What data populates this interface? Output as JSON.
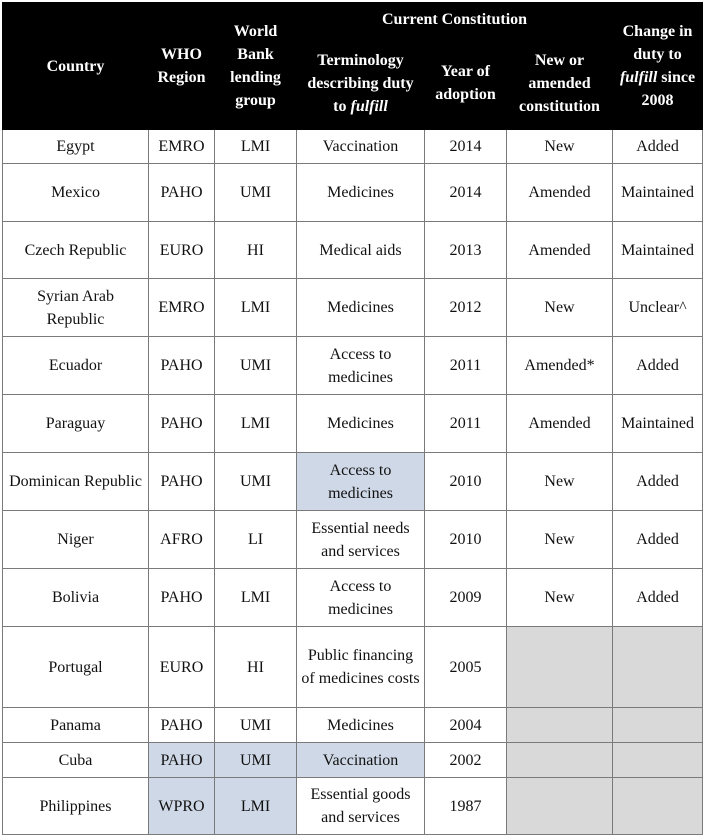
{
  "headers": {
    "country": "Country",
    "who_region": "WHO Region",
    "wb_lending": "World Bank lending group",
    "current_constitution": "Current Constitution",
    "terminology_pre": "Terminology describing duty to ",
    "terminology_em": "fulfill",
    "year": "Year of adoption",
    "new_amended": "New or amended constitution",
    "change_line1": "Change in duty to",
    "change_em": "fulfill",
    "change_line2": "since 2008"
  },
  "rows": [
    {
      "country": "Egypt",
      "who": "EMRO",
      "wb": "LMI",
      "term": "Vaccination",
      "year": "2014",
      "new": "New",
      "change": "Added"
    },
    {
      "country": "Mexico",
      "who": "PAHO",
      "wb": "UMI",
      "term": "Medicines",
      "year": "2014",
      "new": "Amended",
      "change": "Maintained"
    },
    {
      "country": "Czech Republic",
      "who": "EURO",
      "wb": "HI",
      "term": "Medical aids",
      "year": "2013",
      "new": "Amended",
      "change": "Maintained"
    },
    {
      "country": "Syrian Arab Republic",
      "who": "EMRO",
      "wb": "LMI",
      "term": "Medicines",
      "year": "2012",
      "new": "New",
      "change": "Unclear^"
    },
    {
      "country": "Ecuador",
      "who": "PAHO",
      "wb": "UMI",
      "term": "Access to medicines",
      "year": "2011",
      "new": "Amended*",
      "change": "Added"
    },
    {
      "country": "Paraguay",
      "who": "PAHO",
      "wb": "LMI",
      "term": "Medicines",
      "year": "2011",
      "new": "Amended",
      "change": "Maintained"
    },
    {
      "country": "Dominican Republic",
      "who": "PAHO",
      "wb": "UMI",
      "term": "Access to medicines",
      "year": "2010",
      "new": "New",
      "change": "Added"
    },
    {
      "country": "Niger",
      "who": "AFRO",
      "wb": "LI",
      "term": "Essential needs and services",
      "year": "2010",
      "new": "New",
      "change": "Added"
    },
    {
      "country": "Bolivia",
      "who": "PAHO",
      "wb": "LMI",
      "term": "Access to medicines",
      "year": "2009",
      "new": "New",
      "change": "Added"
    },
    {
      "country": "Portugal",
      "who": "EURO",
      "wb": "HI",
      "term": "Public financing of medicines costs",
      "year": "2005",
      "new": "",
      "change": ""
    },
    {
      "country": "Panama",
      "who": "PAHO",
      "wb": "UMI",
      "term": "Medicines",
      "year": "2004",
      "new": "",
      "change": ""
    },
    {
      "country": "Cuba",
      "who": "PAHO",
      "wb": "UMI",
      "term": "Vaccination",
      "year": "2002",
      "new": "",
      "change": ""
    },
    {
      "country": "Philippines",
      "who": "WPRO",
      "wb": "LMI",
      "term": "Essential goods and services",
      "year": "1987",
      "new": "",
      "change": ""
    }
  ]
}
